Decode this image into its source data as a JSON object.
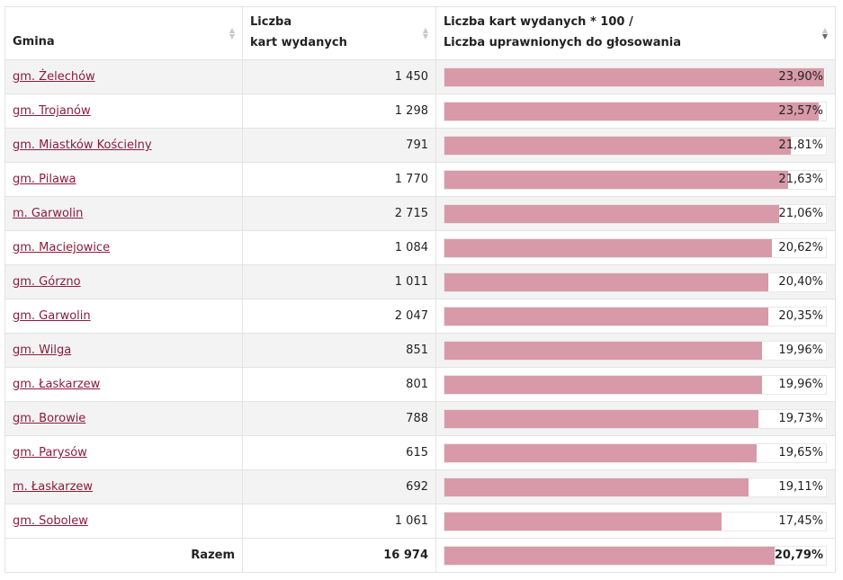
{
  "table": {
    "headers": {
      "gmina": "Gmina",
      "liczba_line1": "Liczba",
      "liczba_line2": "kart wydanych",
      "ratio_line1": "Liczba kart wydanych * 100 /",
      "ratio_line2": "Liczba uprawnionych do głosowania"
    },
    "sort_icons": {
      "gmina": "sort-both-icon",
      "liczba": "sort-both-icon",
      "ratio": "sort-descending-icon"
    },
    "bar_max_percent": 24.0,
    "rows": [
      {
        "gmina": "gm. Żelechów",
        "count": "1 450",
        "ratio": "23,90%",
        "value": 23.9
      },
      {
        "gmina": "gm. Trojanów",
        "count": "1 298",
        "ratio": "23,57%",
        "value": 23.57
      },
      {
        "gmina": "gm. Miastków Kościelny",
        "count": "791",
        "ratio": "21,81%",
        "value": 21.81
      },
      {
        "gmina": "gm. Pilawa",
        "count": "1 770",
        "ratio": "21,63%",
        "value": 21.63
      },
      {
        "gmina": "m. Garwolin",
        "count": "2 715",
        "ratio": "21,06%",
        "value": 21.06
      },
      {
        "gmina": "gm. Maciejowice",
        "count": "1 084",
        "ratio": "20,62%",
        "value": 20.62
      },
      {
        "gmina": "gm. Górzno",
        "count": "1 011",
        "ratio": "20,40%",
        "value": 20.4
      },
      {
        "gmina": "gm. Garwolin",
        "count": "2 047",
        "ratio": "20,35%",
        "value": 20.35
      },
      {
        "gmina": "gm. Wilga",
        "count": "851",
        "ratio": "19,96%",
        "value": 19.96
      },
      {
        "gmina": "gm. Łaskarzew",
        "count": "801",
        "ratio": "19,96%",
        "value": 19.96
      },
      {
        "gmina": "gm. Borowie",
        "count": "788",
        "ratio": "19,73%",
        "value": 19.73
      },
      {
        "gmina": "gm. Parysów",
        "count": "615",
        "ratio": "19,65%",
        "value": 19.65
      },
      {
        "gmina": "m. Łaskarzew",
        "count": "692",
        "ratio": "19,11%",
        "value": 19.11
      },
      {
        "gmina": "gm. Sobolew",
        "count": "1 061",
        "ratio": "17,45%",
        "value": 17.45
      }
    ],
    "total": {
      "label": "Razem",
      "count": "16 974",
      "ratio": "20,79%",
      "value": 20.79
    }
  },
  "colors": {
    "bar": "#d89aa8",
    "link": "#8b1c3c",
    "row_alt": "#f3f3f3"
  }
}
